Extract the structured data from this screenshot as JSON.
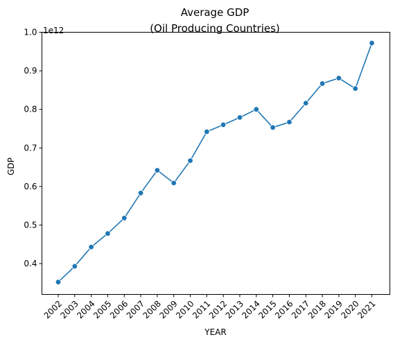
{
  "chart_data": {
    "type": "line",
    "title": [
      "Average GDP",
      "(Oil Producing Countries)"
    ],
    "xlabel": "YEAR",
    "ylabel": "GDP",
    "offset_text": "1e12",
    "categories": [
      "2002",
      "2003",
      "2004",
      "2005",
      "2006",
      "2007",
      "2008",
      "2009",
      "2010",
      "2011",
      "2012",
      "2013",
      "2014",
      "2015",
      "2016",
      "2017",
      "2018",
      "2019",
      "2020",
      "2021"
    ],
    "series": [
      {
        "values": [
          0.352,
          0.393,
          0.443,
          0.478,
          0.518,
          0.583,
          0.642,
          0.609,
          0.667,
          0.742,
          0.76,
          0.779,
          0.8,
          0.753,
          0.767,
          0.816,
          0.867,
          0.881,
          0.854,
          0.972
        ]
      }
    ],
    "y_scale": 1000000000000.0,
    "ylim": [
      0.32,
      1.0
    ],
    "yticks": [
      "0.4",
      "0.5",
      "0.6",
      "0.7",
      "0.8",
      "0.9",
      "1.0"
    ],
    "grid": false,
    "line_color": "#1f77b4",
    "marker": "circle"
  }
}
